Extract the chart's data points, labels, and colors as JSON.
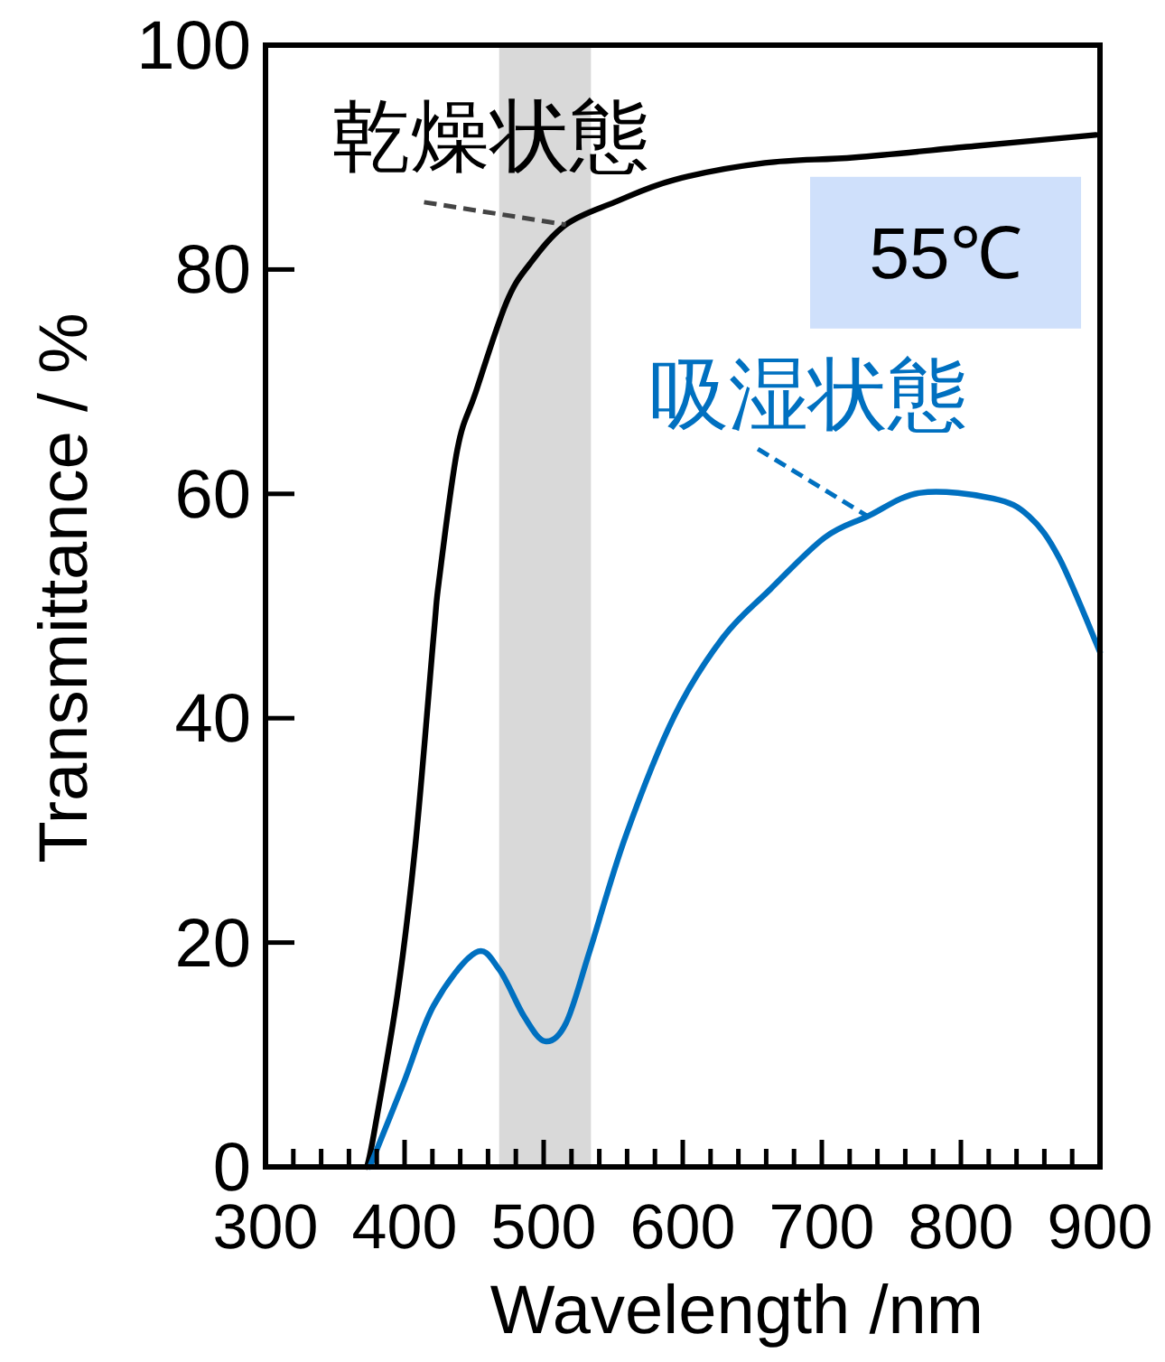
{
  "chart_data": {
    "type": "line",
    "xlabel": "Wavelength /nm",
    "ylabel": "Transmittance / %",
    "xlim": [
      300,
      900
    ],
    "ylim": [
      0,
      100
    ],
    "xticks": [
      300,
      {
        "value": 320,
        "label": null
      },
      {
        "value": 340,
        "label": null
      },
      {
        "value": 360,
        "label": null
      },
      {
        "value": 380,
        "label": null
      },
      400,
      {
        "value": 420,
        "label": null
      },
      {
        "value": 440,
        "label": null
      },
      {
        "value": 460,
        "label": null
      },
      {
        "value": 480,
        "label": null
      },
      500,
      {
        "value": 520,
        "label": null
      },
      {
        "value": 540,
        "label": null
      },
      {
        "value": 560,
        "label": null
      },
      {
        "value": 580,
        "label": null
      },
      600,
      {
        "value": 620,
        "label": null
      },
      {
        "value": 640,
        "label": null
      },
      {
        "value": 660,
        "label": null
      },
      {
        "value": 680,
        "label": null
      },
      700,
      {
        "value": 720,
        "label": null
      },
      {
        "value": 740,
        "label": null
      },
      {
        "value": 760,
        "label": null
      },
      {
        "value": 780,
        "label": null
      },
      800,
      {
        "value": 820,
        "label": null
      },
      {
        "value": 840,
        "label": null
      },
      {
        "value": 860,
        "label": null
      },
      {
        "value": 880,
        "label": null
      },
      900
    ],
    "yticks": [
      0,
      20,
      40,
      60,
      80,
      100
    ],
    "grid": false,
    "line_style": "solid",
    "marker": "none",
    "bands": [
      {
        "axis": "x",
        "from": 468,
        "to": 534,
        "color": "#d9d9d9"
      }
    ],
    "annotations": [
      "55℃"
    ],
    "series": [
      {
        "name": "乾燥状態",
        "color": "#000000",
        "x": [
          373,
          378,
          395,
          408,
          421,
          425,
          438,
          451,
          473,
          490,
          516,
          551,
          594,
          659,
          724,
          810,
          897
        ],
        "values": [
          0,
          3,
          15.5,
          29,
          47.5,
          52.5,
          64,
          69,
          77,
          80.5,
          84,
          86,
          88,
          89.5,
          90,
          91,
          92
        ]
      },
      {
        "name": "吸湿状態",
        "color": "#0070c0",
        "x": [
          375,
          399,
          421,
          451,
          468,
          486,
          501,
          516,
          533,
          559,
          594,
          629,
          663,
          702,
          733,
          771,
          823,
          849,
          871,
          900
        ],
        "values": [
          0,
          7.4,
          14.4,
          19.1,
          17.6,
          13.4,
          11.2,
          12.8,
          19.2,
          29.5,
          40.2,
          47.2,
          51.5,
          56.1,
          58,
          60.1,
          59.6,
          58,
          54.2,
          45.9
        ]
      }
    ]
  }
}
